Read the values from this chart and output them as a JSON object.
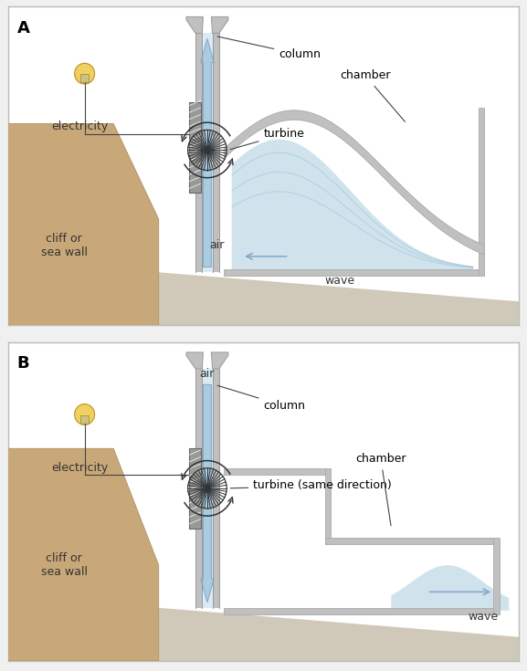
{
  "bg_color": "#f0f0f0",
  "panel_bg": "#ffffff",
  "border_color": "#bbbbbb",
  "cliff_color": "#c8a878",
  "cliff_edge": "#a08858",
  "water_fill": "#c5dce8",
  "water_light": "#daeaf2",
  "water_line": "#90bcd0",
  "chamber_gray": "#c0c0c0",
  "chamber_fill": "#e8e8e8",
  "column_inner": "#daeaf5",
  "arrow_fill": "#aacce0",
  "arrow_edge": "#88aacc",
  "wall_dark": "#888888",
  "wall_light": "#aaaaaa",
  "turbine_col": "#333333",
  "ground_color": "#d0c8b8",
  "label_A": "A",
  "label_B": "B",
  "text_column": "column",
  "text_turbine_A": "turbine",
  "text_turbine_B": "turbine (same direction)",
  "text_chamber": "chamber",
  "text_wave_A": "wave",
  "text_wave_B": "wave",
  "text_air_A": "air",
  "text_air_B": "air",
  "text_electricity": "electricity",
  "text_cliff": "cliff or\nsea wall",
  "fs_label": 13,
  "fs_annot": 9,
  "fs_body": 9
}
